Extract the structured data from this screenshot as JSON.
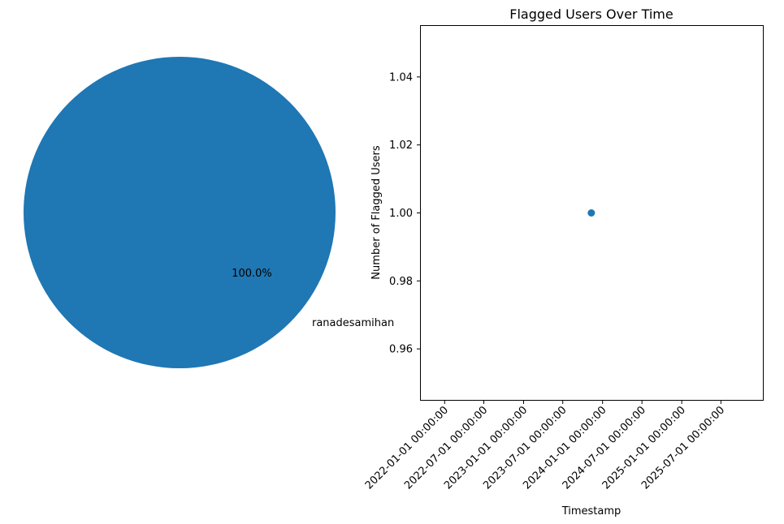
{
  "colors": {
    "pie": "#1f77b4",
    "point": "#1f77b4",
    "axis": "#000000",
    "background": "#ffffff"
  },
  "chart_data": [
    {
      "type": "pie",
      "title": "",
      "slices": [
        {
          "label": "ranadesamihan",
          "value": 1,
          "percent_label": "100.0%",
          "color": "#1f77b4"
        }
      ]
    },
    {
      "type": "scatter",
      "title": "Flagged Users Over Time",
      "xlabel": "Timestamp",
      "ylabel": "Number of Flagged Users",
      "x_scale": "date",
      "xlim": [
        "2021-09-13",
        "2026-01-11"
      ],
      "ylim": [
        0.945,
        1.055
      ],
      "xticks": [
        {
          "value": "2022-01-01",
          "label": "2022-01-01 00:00:00"
        },
        {
          "value": "2022-07-01",
          "label": "2022-07-01 00:00:00"
        },
        {
          "value": "2023-01-01",
          "label": "2023-01-01 00:00:00"
        },
        {
          "value": "2023-07-01",
          "label": "2023-07-01 00:00:00"
        },
        {
          "value": "2024-01-01",
          "label": "2024-01-01 00:00:00"
        },
        {
          "value": "2024-07-01",
          "label": "2024-07-01 00:00:00"
        },
        {
          "value": "2025-01-01",
          "label": "2025-01-01 00:00:00"
        },
        {
          "value": "2025-07-01",
          "label": "2025-07-01 00:00:00"
        }
      ],
      "yticks": [
        {
          "value": 0.96,
          "label": "0.96"
        },
        {
          "value": 0.98,
          "label": "0.98"
        },
        {
          "value": 1.0,
          "label": "1.00"
        },
        {
          "value": 1.02,
          "label": "1.02"
        },
        {
          "value": 1.04,
          "label": "1.04"
        }
      ],
      "points": [
        {
          "x": "2023-11-10",
          "y": 1.0
        }
      ],
      "grid": false
    }
  ]
}
